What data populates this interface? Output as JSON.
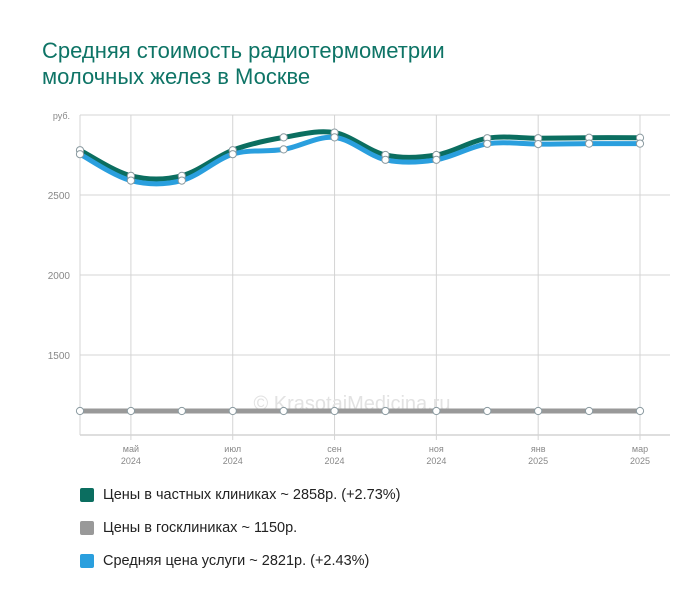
{
  "title": {
    "line1": "Средняя стоимость радиотермометрии",
    "line2": "молочных желез в Москве"
  },
  "watermark": "© KrasotaiMedicina.ru",
  "chart_data": {
    "type": "line",
    "ylabel": "руб.",
    "ylim": [
      1000,
      3000
    ],
    "yticks": [
      1500,
      2000,
      2500
    ],
    "grid": true,
    "legend_position": "bottom",
    "x": [
      "2024-04",
      "2024-05",
      "2024-06",
      "2024-07",
      "2024-08",
      "2024-09",
      "2024-10",
      "2024-11",
      "2024-12",
      "2025-01",
      "2025-02",
      "2025-03"
    ],
    "xticks": [
      {
        "month": "май",
        "year": "2024"
      },
      {
        "month": "июл",
        "year": "2024"
      },
      {
        "month": "сен",
        "year": "2024"
      },
      {
        "month": "ноя",
        "year": "2024"
      },
      {
        "month": "янв",
        "year": "2025"
      },
      {
        "month": "мар",
        "year": "2025"
      }
    ],
    "series": [
      {
        "name": "Цены в частных клиниках ~ 2858р. (+2.73%)",
        "color": "#0b6e60",
        "values": [
          2780,
          2620,
          2620,
          2780,
          2860,
          2890,
          2750,
          2750,
          2855,
          2855,
          2858,
          2858
        ]
      },
      {
        "name": "Цены в госклиниках ~ 1150р.",
        "color": "#999999",
        "values": [
          1150,
          1150,
          1150,
          1150,
          1150,
          1150,
          1150,
          1150,
          1150,
          1150,
          1150,
          1150
        ]
      },
      {
        "name": "Средняя цена услуги ~ 2821р. (+2.43%)",
        "color": "#2a9fde",
        "values": [
          2755,
          2590,
          2590,
          2755,
          2785,
          2860,
          2720,
          2720,
          2820,
          2818,
          2821,
          2821
        ]
      }
    ]
  }
}
